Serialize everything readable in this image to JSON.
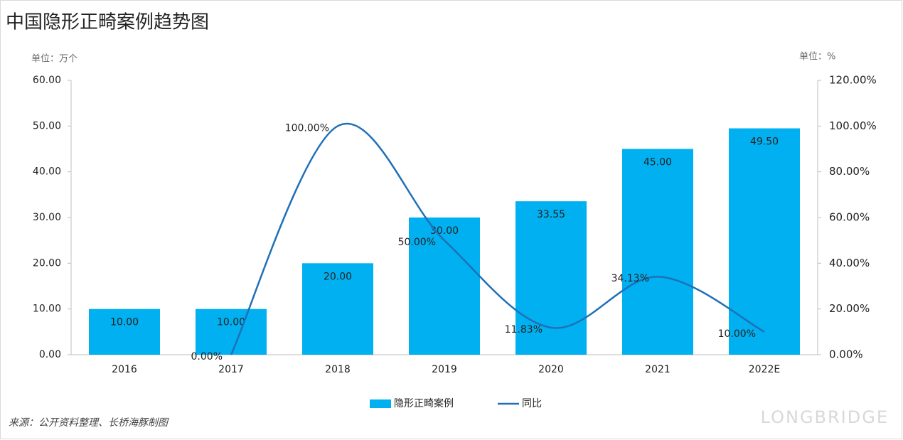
{
  "chart_data": {
    "type": "bar-line",
    "title": "中国隐形正畸案例趋势图",
    "y_unit": "单位：万个",
    "y2_unit": "单位：%",
    "source": "来源：公开资料整理、长桥海豚制图",
    "watermark": "LONGBRIDGE",
    "categories": [
      "2016",
      "2017",
      "2018",
      "2019",
      "2020",
      "2021",
      "2022E"
    ],
    "series": [
      {
        "name": "隐形正畸案例",
        "type": "bar",
        "color": "#00b0f0",
        "values": [
          10,
          10,
          20,
          30,
          33.55,
          45,
          49.5
        ],
        "value_labels": [
          "10.00",
          "10.00",
          "20.00",
          "30.00",
          "33.55",
          "45.00",
          "49.50"
        ]
      },
      {
        "name": "同比",
        "type": "line",
        "axis": "y2",
        "color": "#1f70b8",
        "values": [
          null,
          0,
          100,
          50,
          11.83,
          34.13,
          10
        ],
        "value_labels": [
          null,
          "0.00%",
          "100.00%",
          "50.00%",
          "11.83%",
          "34.13%",
          "10.00%"
        ]
      }
    ],
    "ylim": [
      0,
      60
    ],
    "yticks": [
      {
        "value": 0,
        "label": "0.00"
      },
      {
        "value": 10,
        "label": "10.00"
      },
      {
        "value": 20,
        "label": "20.00"
      },
      {
        "value": 30,
        "label": "30.00"
      },
      {
        "value": 40,
        "label": "40.00"
      },
      {
        "value": 50,
        "label": "50.00"
      },
      {
        "value": 60,
        "label": "60.00"
      }
    ],
    "y2lim": [
      0,
      120
    ],
    "y2ticks": [
      {
        "value": 0,
        "label": "0.00%"
      },
      {
        "value": 20,
        "label": "20.00%"
      },
      {
        "value": 40,
        "label": "40.00%"
      },
      {
        "value": 60,
        "label": "60.00%"
      },
      {
        "value": 80,
        "label": "80.00%"
      },
      {
        "value": 100,
        "label": "100.00%"
      },
      {
        "value": 120,
        "label": "120.00%"
      }
    ],
    "legend": "bottom"
  }
}
